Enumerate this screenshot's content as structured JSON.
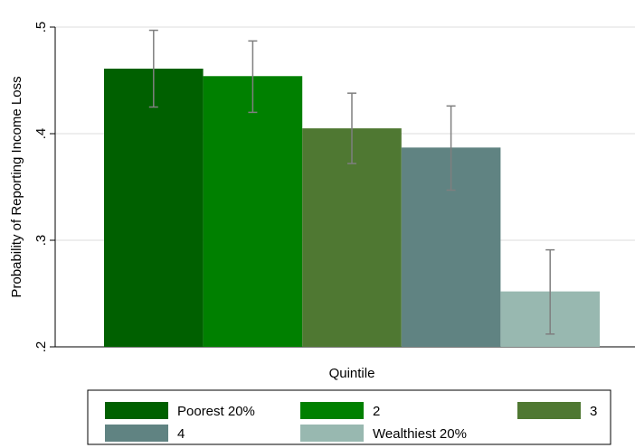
{
  "chart_data": {
    "type": "bar",
    "title": "",
    "xlabel": "Quintile",
    "ylabel": "Probability of Reporting Income Loss",
    "ylim": [
      0.2,
      0.5
    ],
    "yticks": [
      0.2,
      0.3,
      0.4,
      0.5
    ],
    "ytick_labels": [
      ".2",
      ".3",
      ".4",
      ".5"
    ],
    "grid": true,
    "legend_position": "bottom",
    "series": [
      {
        "name": "Poorest 20%",
        "value": 0.461,
        "ci_low": 0.425,
        "ci_high": 0.497,
        "color": "#006000"
      },
      {
        "name": "2",
        "value": 0.454,
        "ci_low": 0.42,
        "ci_high": 0.487,
        "color": "#008000"
      },
      {
        "name": "3",
        "value": 0.405,
        "ci_low": 0.372,
        "ci_high": 0.438,
        "color": "#4f7832"
      },
      {
        "name": "4",
        "value": 0.387,
        "ci_low": 0.347,
        "ci_high": 0.426,
        "color": "#608382"
      },
      {
        "name": "Wealthiest 20%",
        "value": 0.252,
        "ci_low": 0.212,
        "ci_high": 0.291,
        "color": "#98b8b0"
      }
    ]
  }
}
